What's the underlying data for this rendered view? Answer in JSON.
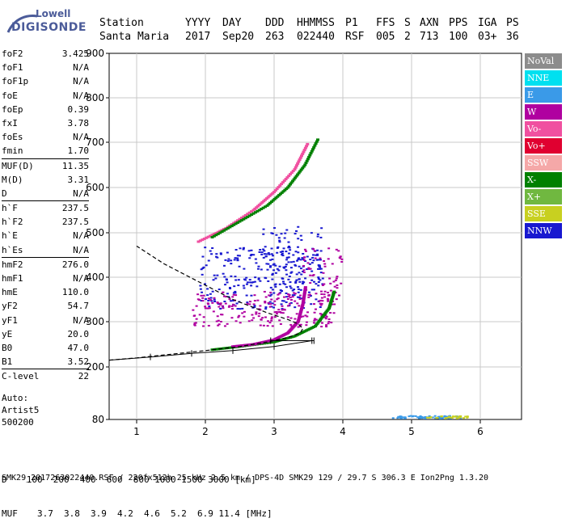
{
  "logo": {
    "line1": "Lowell",
    "line2": "DIGISONDE"
  },
  "header": {
    "labels": [
      "Station",
      "YYYY",
      "DAY",
      "DDD",
      "HHMMSS",
      "P1",
      "FFS",
      "S",
      "AXN",
      "PPS",
      "IGA",
      "PS"
    ],
    "values": [
      "Santa Maria",
      "2017",
      "Sep20",
      "263",
      "022440",
      "RSF",
      "005",
      "2",
      "713",
      "100",
      "03+",
      "36"
    ]
  },
  "params": [
    {
      "k": "foF2",
      "v": "3.425"
    },
    {
      "k": "foF1",
      "v": "N/A"
    },
    {
      "k": "foF1p",
      "v": "N/A"
    },
    {
      "k": "foE",
      "v": "N/A"
    },
    {
      "k": "foEp",
      "v": "0.39"
    },
    {
      "k": "fxI",
      "v": "3.78"
    },
    {
      "k": "foEs",
      "v": "N/A"
    },
    {
      "k": "fmin",
      "v": "1.70"
    },
    {
      "k": "MUF(D)",
      "v": "11.35"
    },
    {
      "k": "M(D)",
      "v": "3.31"
    },
    {
      "k": "D",
      "v": "N/A"
    },
    {
      "k": "h`F",
      "v": "237.5"
    },
    {
      "k": "h`F2",
      "v": "237.5"
    },
    {
      "k": "h`E",
      "v": "N/A"
    },
    {
      "k": "h`Es",
      "v": "N/A"
    },
    {
      "k": "hmF2",
      "v": "276.0"
    },
    {
      "k": "hmF1",
      "v": "N/A"
    },
    {
      "k": "hmE",
      "v": "110.0"
    },
    {
      "k": "yF2",
      "v": "54.7"
    },
    {
      "k": "yF1",
      "v": "N/A"
    },
    {
      "k": "yE",
      "v": "20.0"
    },
    {
      "k": "B0",
      "v": "47.0"
    },
    {
      "k": "B1",
      "v": "3.52"
    },
    {
      "k": "C-level",
      "v": "22"
    }
  ],
  "auto": {
    "line1": "Auto:",
    "line2": "Artist5",
    "line3": "500200"
  },
  "legend": [
    {
      "label": "NoVal",
      "color": "#8c8c8c"
    },
    {
      "label": "NNE",
      "color": "#00e0f0"
    },
    {
      "label": "E",
      "color": "#3a9ae8"
    },
    {
      "label": "W",
      "color": "#b000a0"
    },
    {
      "label": "Vo-",
      "color": "#f050a0"
    },
    {
      "label": "Vo+",
      "color": "#e00030"
    },
    {
      "label": "SSW",
      "color": "#f5a8a8"
    },
    {
      "label": "X-",
      "color": "#008000"
    },
    {
      "label": "X+",
      "color": "#70b840"
    },
    {
      "label": "SSE",
      "color": "#c8d020"
    },
    {
      "label": "NNW",
      "color": "#1818d0"
    }
  ],
  "muf_table": {
    "d_label": "D",
    "d_values": [
      "100",
      "200",
      "400",
      "600",
      "800",
      "1000",
      "1500",
      "3000"
    ],
    "d_unit": "[km]",
    "muf_label": "MUF",
    "muf_values": [
      "3.7",
      "3.8",
      "3.9",
      "4.2",
      "4.6",
      "5.2",
      "6.9",
      "11.4"
    ],
    "muf_unit": "[MHz]"
  },
  "footer": "SMK29_2017263022440.RSF / 220fx512h 25 kHz 2.5 km / DPS-4D SMK29 129 / 29.7 S 306.3 E Ion2Png 1.3.20",
  "chart_data": {
    "type": "scatter",
    "x_ticks": [
      "1",
      "2",
      "3",
      "4",
      "5",
      "6"
    ],
    "y_ticks": [
      "80",
      "200",
      "300",
      "400",
      "500",
      "600",
      "700",
      "800",
      "900"
    ],
    "xlim": [
      0.6,
      6.6
    ],
    "y_scale": "quasi-logarithmic (virtual height, km)",
    "grid": true,
    "profile_curve": {
      "x": [
        0.6,
        1.0,
        1.5,
        2.0,
        2.5,
        2.9,
        3.2,
        3.38,
        3.42,
        3.35,
        3.2,
        2.9,
        2.4,
        1.9,
        1.4,
        1.0
      ],
      "y": [
        215,
        220,
        228,
        236,
        245,
        255,
        265,
        275,
        285,
        295,
        305,
        320,
        350,
        390,
        430,
        470
      ]
    },
    "trace_o_F2": {
      "x": [
        2.4,
        2.7,
        3.0,
        3.2,
        3.35,
        3.42,
        3.46
      ],
      "y": [
        245,
        250,
        260,
        275,
        300,
        340,
        380
      ]
    },
    "trace_x_F2": {
      "x": [
        2.1,
        2.5,
        3.0,
        3.3,
        3.6,
        3.8,
        3.88
      ],
      "y": [
        238,
        245,
        255,
        268,
        290,
        330,
        370
      ]
    },
    "upper_trace_o": {
      "x": [
        1.9,
        2.3,
        2.7,
        3.0,
        3.3,
        3.5
      ],
      "y": [
        480,
        510,
        550,
        590,
        640,
        700
      ]
    },
    "upper_trace_x": {
      "x": [
        2.1,
        2.5,
        2.9,
        3.2,
        3.45,
        3.65
      ],
      "y": [
        490,
        525,
        560,
        600,
        650,
        710
      ]
    }
  }
}
